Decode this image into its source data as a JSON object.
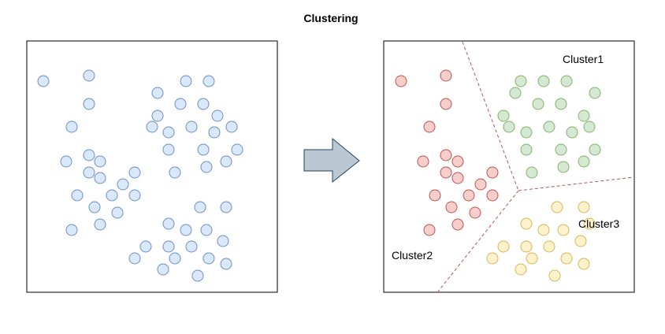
{
  "title": "Clustering",
  "labels": {
    "cluster1": "Cluster1",
    "cluster2": "Cluster2",
    "cluster3": "Cluster3"
  },
  "colors": {
    "unclustered_fill": "#dae8fc",
    "unclustered_stroke": "#6c8ebf",
    "cluster1_fill": "#d5e8d4",
    "cluster1_stroke": "#82b366",
    "cluster2_fill": "#f8cecc",
    "cluster2_stroke": "#b85450",
    "cluster3_fill": "#fff2cc",
    "cluster3_stroke": "#d6b656",
    "boundary": "#b85450",
    "arrow_fill": "#bac8d3",
    "arrow_stroke": "#23445d"
  },
  "arrow_icon": "right-arrow-icon"
}
